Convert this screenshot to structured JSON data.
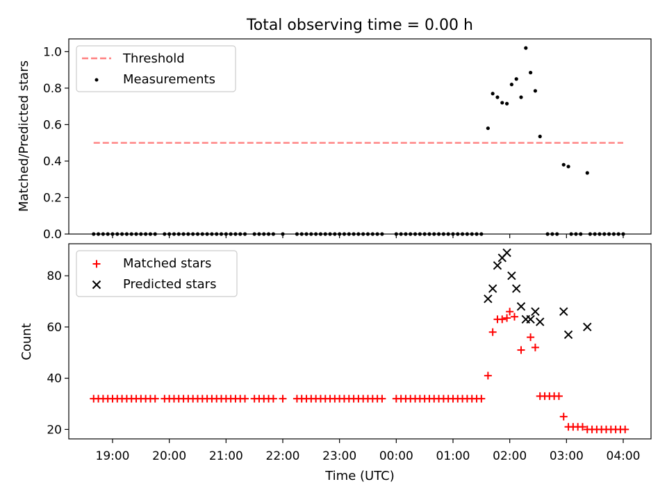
{
  "title": "Total observing time = 0.00 h",
  "colors": {
    "threshold": "#ff7f7f",
    "measurements": "#000000",
    "matched": "#ff0000",
    "predicted": "#000000"
  },
  "chart_data": [
    {
      "type": "scatter",
      "ylabel": "Matched/Predicted stars",
      "xlabel": "",
      "ylim": [
        0,
        1.07
      ],
      "yticks": [
        "0.0",
        "0.2",
        "0.4",
        "0.6",
        "0.8",
        "1.0"
      ],
      "legend": {
        "placement": "upper-left",
        "entries": [
          {
            "label": "Threshold",
            "marker": "dashed-line"
          },
          {
            "label": "Measurements",
            "marker": "dot"
          }
        ]
      },
      "threshold": {
        "value": 0.5,
        "x_start": "18:40",
        "x_end": "04:00"
      },
      "measurements": [
        [
          "18:40",
          0
        ],
        [
          "18:45",
          0
        ],
        [
          "18:50",
          0
        ],
        [
          "18:55",
          0
        ],
        [
          "19:00",
          0
        ],
        [
          "19:05",
          0
        ],
        [
          "19:10",
          0
        ],
        [
          "19:15",
          0
        ],
        [
          "19:20",
          0
        ],
        [
          "19:25",
          0
        ],
        [
          "19:30",
          0
        ],
        [
          "19:35",
          0
        ],
        [
          "19:40",
          0
        ],
        [
          "19:45",
          0
        ],
        [
          "19:55",
          0
        ],
        [
          "20:00",
          0
        ],
        [
          "20:05",
          0
        ],
        [
          "20:10",
          0
        ],
        [
          "20:15",
          0
        ],
        [
          "20:20",
          0
        ],
        [
          "20:25",
          0
        ],
        [
          "20:30",
          0
        ],
        [
          "20:35",
          0
        ],
        [
          "20:40",
          0
        ],
        [
          "20:45",
          0
        ],
        [
          "20:50",
          0
        ],
        [
          "20:55",
          0
        ],
        [
          "21:00",
          0
        ],
        [
          "21:05",
          0
        ],
        [
          "21:10",
          0
        ],
        [
          "21:15",
          0
        ],
        [
          "21:20",
          0
        ],
        [
          "21:30",
          0
        ],
        [
          "21:35",
          0
        ],
        [
          "21:40",
          0
        ],
        [
          "21:45",
          0
        ],
        [
          "21:50",
          0
        ],
        [
          "22:00",
          0
        ],
        [
          "22:15",
          0
        ],
        [
          "22:20",
          0
        ],
        [
          "22:25",
          0
        ],
        [
          "22:30",
          0
        ],
        [
          "22:35",
          0
        ],
        [
          "22:40",
          0
        ],
        [
          "22:45",
          0
        ],
        [
          "22:50",
          0
        ],
        [
          "22:55",
          0
        ],
        [
          "23:00",
          0
        ],
        [
          "23:05",
          0
        ],
        [
          "23:10",
          0
        ],
        [
          "23:15",
          0
        ],
        [
          "23:20",
          0
        ],
        [
          "23:25",
          0
        ],
        [
          "23:30",
          0
        ],
        [
          "23:35",
          0
        ],
        [
          "23:40",
          0
        ],
        [
          "23:45",
          0
        ],
        [
          "00:00",
          0
        ],
        [
          "00:05",
          0
        ],
        [
          "00:10",
          0
        ],
        [
          "00:15",
          0
        ],
        [
          "00:20",
          0
        ],
        [
          "00:25",
          0
        ],
        [
          "00:30",
          0
        ],
        [
          "00:35",
          0
        ],
        [
          "00:40",
          0
        ],
        [
          "00:45",
          0
        ],
        [
          "00:50",
          0
        ],
        [
          "00:55",
          0
        ],
        [
          "01:00",
          0
        ],
        [
          "01:05",
          0
        ],
        [
          "01:10",
          0
        ],
        [
          "01:15",
          0
        ],
        [
          "01:20",
          0
        ],
        [
          "01:25",
          0
        ],
        [
          "01:30",
          0
        ],
        [
          "01:37",
          0.58
        ],
        [
          "01:42",
          0.77
        ],
        [
          "01:47",
          0.75
        ],
        [
          "01:52",
          0.72
        ],
        [
          "01:57",
          0.715
        ],
        [
          "02:02",
          0.82
        ],
        [
          "02:07",
          0.85
        ],
        [
          "02:12",
          0.75
        ],
        [
          "02:17",
          1.02
        ],
        [
          "02:22",
          0.885
        ],
        [
          "02:27",
          0.785
        ],
        [
          "02:32",
          0.535
        ],
        [
          "02:40",
          0
        ],
        [
          "02:45",
          0
        ],
        [
          "02:50",
          0
        ],
        [
          "02:57",
          0.38
        ],
        [
          "03:02",
          0.37
        ],
        [
          "03:05",
          0
        ],
        [
          "03:10",
          0
        ],
        [
          "03:15",
          0
        ],
        [
          "03:22",
          0.335
        ],
        [
          "03:25",
          0
        ],
        [
          "03:30",
          0
        ],
        [
          "03:35",
          0
        ],
        [
          "03:40",
          0
        ],
        [
          "03:45",
          0
        ],
        [
          "03:50",
          0
        ],
        [
          "03:55",
          0
        ],
        [
          "04:00",
          0
        ]
      ]
    },
    {
      "type": "scatter",
      "ylabel": "Count",
      "xlabel": "Time (UTC)",
      "ylim": [
        16.3,
        92.5
      ],
      "yticks": [
        "20",
        "40",
        "60",
        "80"
      ],
      "xticks": [
        "19:00",
        "20:00",
        "21:00",
        "22:00",
        "23:00",
        "00:00",
        "01:00",
        "02:00",
        "03:00",
        "04:00"
      ],
      "legend": {
        "placement": "upper-left",
        "entries": [
          {
            "label": "Matched stars",
            "marker": "plus"
          },
          {
            "label": "Predicted stars",
            "marker": "x"
          }
        ]
      },
      "matched": [
        [
          "18:40",
          32
        ],
        [
          "18:45",
          32
        ],
        [
          "18:50",
          32
        ],
        [
          "18:55",
          32
        ],
        [
          "19:00",
          32
        ],
        [
          "19:05",
          32
        ],
        [
          "19:10",
          32
        ],
        [
          "19:15",
          32
        ],
        [
          "19:20",
          32
        ],
        [
          "19:25",
          32
        ],
        [
          "19:30",
          32
        ],
        [
          "19:35",
          32
        ],
        [
          "19:40",
          32
        ],
        [
          "19:45",
          32
        ],
        [
          "19:55",
          32
        ],
        [
          "20:00",
          32
        ],
        [
          "20:05",
          32
        ],
        [
          "20:10",
          32
        ],
        [
          "20:15",
          32
        ],
        [
          "20:20",
          32
        ],
        [
          "20:25",
          32
        ],
        [
          "20:30",
          32
        ],
        [
          "20:35",
          32
        ],
        [
          "20:40",
          32
        ],
        [
          "20:45",
          32
        ],
        [
          "20:50",
          32
        ],
        [
          "20:55",
          32
        ],
        [
          "21:00",
          32
        ],
        [
          "21:05",
          32
        ],
        [
          "21:10",
          32
        ],
        [
          "21:15",
          32
        ],
        [
          "21:20",
          32
        ],
        [
          "21:30",
          32
        ],
        [
          "21:35",
          32
        ],
        [
          "21:40",
          32
        ],
        [
          "21:45",
          32
        ],
        [
          "21:50",
          32
        ],
        [
          "22:00",
          32
        ],
        [
          "22:15",
          32
        ],
        [
          "22:20",
          32
        ],
        [
          "22:25",
          32
        ],
        [
          "22:30",
          32
        ],
        [
          "22:35",
          32
        ],
        [
          "22:40",
          32
        ],
        [
          "22:45",
          32
        ],
        [
          "22:50",
          32
        ],
        [
          "22:55",
          32
        ],
        [
          "23:00",
          32
        ],
        [
          "23:05",
          32
        ],
        [
          "23:10",
          32
        ],
        [
          "23:15",
          32
        ],
        [
          "23:20",
          32
        ],
        [
          "23:25",
          32
        ],
        [
          "23:30",
          32
        ],
        [
          "23:35",
          32
        ],
        [
          "23:40",
          32
        ],
        [
          "23:45",
          32
        ],
        [
          "00:00",
          32
        ],
        [
          "00:05",
          32
        ],
        [
          "00:10",
          32
        ],
        [
          "00:15",
          32
        ],
        [
          "00:20",
          32
        ],
        [
          "00:25",
          32
        ],
        [
          "00:30",
          32
        ],
        [
          "00:35",
          32
        ],
        [
          "00:40",
          32
        ],
        [
          "00:45",
          32
        ],
        [
          "00:50",
          32
        ],
        [
          "00:55",
          32
        ],
        [
          "01:00",
          32
        ],
        [
          "01:05",
          32
        ],
        [
          "01:10",
          32
        ],
        [
          "01:15",
          32
        ],
        [
          "01:20",
          32
        ],
        [
          "01:25",
          32
        ],
        [
          "01:30",
          32
        ],
        [
          "01:37",
          41
        ],
        [
          "01:42",
          58
        ],
        [
          "01:47",
          63
        ],
        [
          "01:52",
          63
        ],
        [
          "01:57",
          63.5
        ],
        [
          "02:00",
          66
        ],
        [
          "02:05",
          64
        ],
        [
          "02:12",
          51
        ],
        [
          "02:22",
          56
        ],
        [
          "02:27",
          52
        ],
        [
          "02:32",
          33
        ],
        [
          "02:37",
          33
        ],
        [
          "02:42",
          33
        ],
        [
          "02:47",
          33
        ],
        [
          "02:52",
          33
        ],
        [
          "02:57",
          25
        ],
        [
          "03:02",
          21
        ],
        [
          "03:07",
          21
        ],
        [
          "03:12",
          21
        ],
        [
          "03:17",
          21
        ],
        [
          "03:22",
          20
        ],
        [
          "03:27",
          20
        ],
        [
          "03:32",
          20
        ],
        [
          "03:37",
          20
        ],
        [
          "03:42",
          20
        ],
        [
          "03:47",
          20
        ],
        [
          "03:52",
          20
        ],
        [
          "03:57",
          20
        ],
        [
          "04:02",
          20
        ]
      ],
      "predicted": [
        [
          "01:37",
          71
        ],
        [
          "01:42",
          75
        ],
        [
          "01:47",
          84
        ],
        [
          "01:52",
          87
        ],
        [
          "01:57",
          89
        ],
        [
          "02:02",
          80
        ],
        [
          "02:07",
          75
        ],
        [
          "02:12",
          68
        ],
        [
          "02:17",
          63
        ],
        [
          "02:22",
          63
        ],
        [
          "02:27",
          66
        ],
        [
          "02:32",
          62
        ],
        [
          "02:57",
          66
        ],
        [
          "03:02",
          57
        ],
        [
          "03:22",
          60
        ]
      ]
    }
  ]
}
